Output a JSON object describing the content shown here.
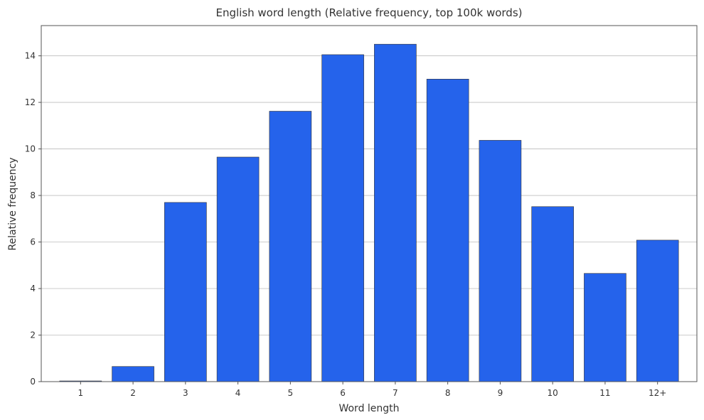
{
  "chart_data": {
    "type": "bar",
    "title": "English word length (Relative frequency, top 100k words)",
    "xlabel": "Word length",
    "ylabel": "Relative frequency",
    "categories": [
      "1",
      "2",
      "3",
      "4",
      "5",
      "6",
      "7",
      "8",
      "9",
      "10",
      "11",
      "12+"
    ],
    "values": [
      0.03,
      0.65,
      7.7,
      9.65,
      11.62,
      14.05,
      14.5,
      13.0,
      10.37,
      7.52,
      4.65,
      6.08
    ],
    "ylim": [
      0,
      15.3
    ],
    "yticks": [
      0,
      2,
      4,
      6,
      8,
      10,
      12,
      14
    ],
    "grid": "y",
    "bar_color": "#2563eb",
    "bar_edge_color": "#333333",
    "grid_color": "#bdbdbd"
  }
}
